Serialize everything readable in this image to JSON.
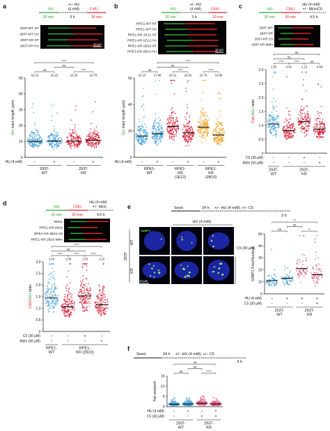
{
  "colors": {
    "idu": "#2fa33a",
    "cldu": "#e0202a",
    "blue": "#4aa3d8",
    "red": "#d6203a",
    "orange": "#f0a020",
    "pink": "#e05a80",
    "black": "#111111",
    "nucleus": "#2430c8"
  },
  "panels": {
    "a": {
      "letter": "a",
      "hu": "+/− HU",
      "hu_conc": "(4 mM)",
      "idu": "IdU",
      "cldu": "CldU",
      "t1": "30 min",
      "t2": "3 h",
      "t3": "30 min",
      "fibers": [
        "293T-WT NT",
        "293T-WT HU",
        "293T-KR NT",
        "293T-KR HU"
      ],
      "scale": "10 μm"
    },
    "b": {
      "letter": "b",
      "hu": "+/− HU",
      "hu_conc": "(4 mM)",
      "idu": "IdU",
      "cldu": "CldU",
      "t1": "20 min",
      "t2": "3 h",
      "t3": "20 min",
      "fibers": [
        "RPE1-WT NT",
        "RPE1-WT HU",
        "RPE1-KR-1E12 NT",
        "RPE1-KR-1E12 HU",
        "RPE1-KR-2B10 NT",
        "RPE1-KR-2B10 HU"
      ],
      "scale": "10 μm"
    },
    "c": {
      "letter": "c",
      "hu": "HU (4 mM)",
      "hu2": "+/− Mirin/C5",
      "idu": "IdU",
      "cldu": "CldU",
      "t1": "30 min",
      "t2": "30 min",
      "t3": "4.5 h",
      "fibers": [
        "293T-WT",
        "293T-KR",
        "293T-KR C5",
        "293T-KR Mirin"
      ]
    },
    "d": {
      "letter": "d",
      "hu": "HU (4 mM)",
      "hu2": "+/− Mirin",
      "idu": "IdU",
      "cldu": "CldU",
      "t1": "20 min",
      "t2": "20 min",
      "t3": "4.5 h",
      "fibers": [
        "RPE1",
        "RPE1-KR-2B10",
        "RPE1-KR-2B10 C5",
        "RPE1-KR-2B10 Mirin"
      ]
    },
    "e": {
      "letter": "e",
      "seed": "Seed",
      "t1": "24 h",
      "treat": "+/− HU (4 mM), +/− C5",
      "t2": "3 h",
      "img_title": "HU (4 mM)",
      "stain": "53BP1",
      "row1": "WT",
      "row2": "KR",
      "row_group": "293T",
      "c5_label": "C5 (30 μM)",
      "scale": "10 μm"
    },
    "f": {
      "letter": "f",
      "seed": "Seed",
      "t1": "24 h",
      "treat": "+/− HU (4 mM), +/− C5",
      "t2": "3 h"
    }
  },
  "chart_data": [
    {
      "id": "a",
      "type": "scatter",
      "ylabel_parts": [
        "IdU",
        " tract length (μm)"
      ],
      "ylim": [
        0,
        50
      ],
      "yticks": [
        0,
        10,
        20,
        30,
        40,
        50
      ],
      "medians": [
        10.13,
        10.23,
        10.25,
        10.79
      ],
      "median_labels": [
        "10.13",
        "10.23",
        "10.25",
        "10.79"
      ],
      "series_colors": [
        "blue",
        "blue",
        "red",
        "red"
      ],
      "conditions": [
        {
          "label": "HU (4 mM)",
          "values": [
            "−",
            "+",
            "−",
            "+"
          ]
        }
      ],
      "groups": [
        {
          "label": "293T-\nWT",
          "span": [
            0,
            1
          ]
        },
        {
          "label": "293T-\nKR",
          "span": [
            2,
            3
          ]
        }
      ],
      "brackets": [
        {
          "a": 0,
          "b": 1,
          "text": "ns",
          "level": 1
        },
        {
          "a": 2,
          "b": 3,
          "text": "****",
          "level": 1
        },
        {
          "a": 1,
          "b": 2,
          "text": "ns",
          "level": 2
        },
        {
          "a": 0,
          "b": 3,
          "text": "****",
          "level": 3
        }
      ]
    },
    {
      "id": "b",
      "type": "scatter",
      "ylabel_parts": [
        "IdU",
        " tract length (μm)"
      ],
      "ylim": [
        0,
        60
      ],
      "yticks": [
        0,
        20,
        40,
        60
      ],
      "medians": [
        16.13,
        17.86,
        23.31,
        18.52,
        22.75,
        16.88
      ],
      "median_labels": [
        "16.13",
        "17.86",
        "23.31",
        "18.52",
        "22.75",
        "16.88"
      ],
      "series_colors": [
        "blue",
        "blue",
        "red",
        "red",
        "orange",
        "orange"
      ],
      "conditions": [
        {
          "label": "HU (4 mM)",
          "values": [
            "−",
            "+",
            "−",
            "+",
            "−",
            "+"
          ]
        }
      ],
      "groups": [
        {
          "label": "RPE1-\nWT",
          "span": [
            0,
            1
          ]
        },
        {
          "label": "RPE1-\nKR\n(1E12)",
          "span": [
            2,
            3
          ]
        },
        {
          "label": "RPE1-\nKR\n(2B10)",
          "span": [
            4,
            5
          ]
        }
      ],
      "brackets": [
        {
          "a": 0,
          "b": 1,
          "text": "ns",
          "level": 1
        },
        {
          "a": 2,
          "b": 3,
          "text": "****",
          "level": 1
        },
        {
          "a": 4,
          "b": 5,
          "text": "****",
          "level": 1
        },
        {
          "a": 1,
          "b": 3,
          "text": "ns",
          "level": 2
        },
        {
          "a": 1,
          "b": 5,
          "text": "****",
          "level": 3
        }
      ]
    },
    {
      "id": "c",
      "type": "scatter",
      "ylabel_parts": [
        "CldU",
        "/",
        "IdU",
        " ratio"
      ],
      "ylim": [
        0,
        3
      ],
      "yticks": [
        0,
        0.5,
        1.0,
        1.5,
        2.0,
        2.5,
        3.0
      ],
      "medians": [
        1.05,
        0.81,
        1.13,
        0.86
      ],
      "median_labels": [
        "1.05",
        "0.81",
        "1.13",
        "0.86"
      ],
      "series_colors": [
        "blue",
        "red",
        "red",
        "red"
      ],
      "conditions": [
        {
          "label": "C5 (30 μM)",
          "values": [
            "−",
            "−",
            "+",
            "−"
          ]
        },
        {
          "label": "Mirin (50 μM)",
          "values": [
            "−",
            "−",
            "−",
            "+"
          ]
        }
      ],
      "groups": [
        {
          "label": "293T-\nWT",
          "span": [
            0,
            0
          ]
        },
        {
          "label": "293T-\nKR",
          "span": [
            1,
            3
          ]
        }
      ],
      "brackets": [
        {
          "a": 0,
          "b": 1,
          "text": "****",
          "level": 1
        },
        {
          "a": 1,
          "b": 2,
          "text": "****",
          "level": 1
        },
        {
          "a": 2,
          "b": 3,
          "text": "ns",
          "level": 1
        },
        {
          "a": 0,
          "b": 2,
          "text": "ns",
          "level": 2
        },
        {
          "a": 0,
          "b": 3,
          "text": "ns",
          "level": 3
        }
      ]
    },
    {
      "id": "d",
      "type": "scatter",
      "ylabel_parts": [
        "CldU",
        "/",
        "IdU",
        " ratio"
      ],
      "ylim": [
        0,
        3
      ],
      "yticks": [
        0,
        0.5,
        1.0,
        1.5,
        2.0,
        2.5,
        3.0
      ],
      "medians": [
        1.44,
        1.06,
        1.53,
        1.15
      ],
      "median_labels": [
        "1.44",
        "1.06",
        "1.53",
        "1.15"
      ],
      "series_colors": [
        "blue",
        "red",
        "red",
        "red"
      ],
      "conditions": [
        {
          "label": "C5 (30 μM)",
          "values": [
            "−",
            "−",
            "+",
            "−"
          ]
        },
        {
          "label": "Mirin (50 μM)",
          "values": [
            "−",
            "−",
            "−",
            "+"
          ]
        }
      ],
      "groups": [
        {
          "label": "RPE1-\nWT",
          "span": [
            0,
            0
          ]
        },
        {
          "label": "RPE1-\nKR (2B10)",
          "span": [
            1,
            3
          ]
        }
      ],
      "brackets": [
        {
          "a": 0,
          "b": 1,
          "text": "****",
          "level": 1
        },
        {
          "a": 1,
          "b": 2,
          "text": "****",
          "level": 1
        },
        {
          "a": 2,
          "b": 3,
          "text": "****",
          "level": 1
        },
        {
          "a": 0,
          "b": 2,
          "text": "ns",
          "level": 2
        },
        {
          "a": 0,
          "b": 3,
          "text": "****",
          "level": 3
        }
      ]
    },
    {
      "id": "e",
      "type": "scatter",
      "ylabel_parts": [
        "53BP1 Foci/Nucleus"
      ],
      "ylim": [
        0,
        50
      ],
      "yticks": [
        0,
        10,
        20,
        30,
        40,
        50
      ],
      "medians": [
        11,
        13,
        21,
        16
      ],
      "median_labels": [],
      "series_colors": [
        "blue",
        "blue",
        "pink",
        "pink"
      ],
      "conditions": [
        {
          "label": "HU (4 mM)",
          "values": [
            "−",
            "+",
            "+",
            "+"
          ]
        },
        {
          "label": "C5 (30 μM)",
          "values": [
            "−",
            "−",
            "−",
            "+"
          ]
        }
      ],
      "groups": [
        {
          "label": "293T-\nWT",
          "span": [
            0,
            1
          ]
        },
        {
          "label": "293T-\nKR",
          "span": [
            2,
            3
          ]
        }
      ],
      "brackets": [
        {
          "a": 0,
          "b": 1,
          "text": "ns",
          "level": 1
        },
        {
          "a": 2,
          "b": 3,
          "text": "**",
          "level": 1
        },
        {
          "a": 1,
          "b": 2,
          "text": "ns",
          "level": 2
        },
        {
          "a": 0,
          "b": 3,
          "text": "**",
          "level": 3
        }
      ]
    },
    {
      "id": "f",
      "type": "scatter",
      "ylabel_parts": [
        "Tail moment"
      ],
      "ylim": [
        0,
        15
      ],
      "yticks": [
        0,
        5,
        10,
        15
      ],
      "medians": [
        1.2,
        1.3,
        1.6,
        1.3
      ],
      "median_labels": [],
      "series_colors": [
        "blue",
        "blue",
        "pink",
        "pink"
      ],
      "conditions": [
        {
          "label": "HU (4 mM)",
          "values": [
            "−",
            "+",
            "−",
            "+"
          ]
        },
        {
          "label": "C5 (30 μM)",
          "values": [
            "−",
            "−",
            "+",
            "+"
          ]
        }
      ],
      "groups": [
        {
          "label": "293T-\nWT",
          "span": [
            0,
            1
          ]
        },
        {
          "label": "293T-\nKR",
          "span": [
            2,
            3
          ]
        }
      ],
      "brackets": [
        {
          "a": 0,
          "b": 1,
          "text": "ns",
          "level": 1
        },
        {
          "a": 2,
          "b": 3,
          "text": "****",
          "level": 1
        },
        {
          "a": 1,
          "b": 2,
          "text": "ns",
          "level": 2
        },
        {
          "a": 0,
          "b": 3,
          "text": "ns",
          "level": 3
        }
      ]
    }
  ]
}
